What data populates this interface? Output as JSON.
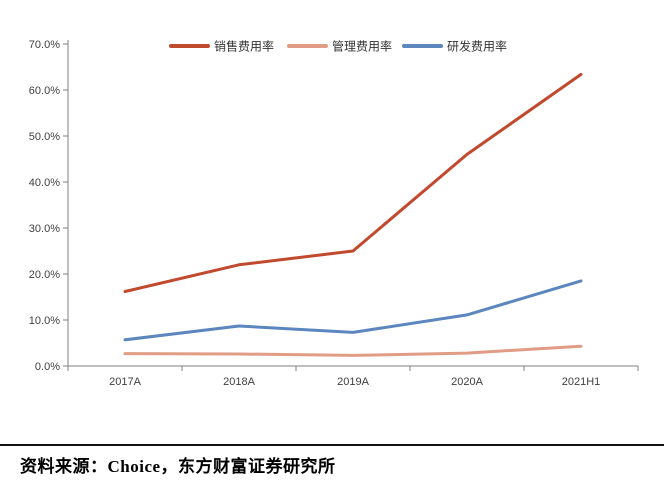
{
  "chart_data": {
    "type": "line",
    "categories": [
      "2017A",
      "2018A",
      "2019A",
      "2020A",
      "2021H1"
    ],
    "series": [
      {
        "name": "销售费用率",
        "color": "#C0492E",
        "values": [
          16.2,
          22.0,
          25.0,
          46.0,
          63.4
        ]
      },
      {
        "name": "管理费用率",
        "color": "#E09C85",
        "values": [
          2.7,
          2.6,
          2.3,
          2.8,
          4.3
        ]
      },
      {
        "name": "研发费用率",
        "color": "#5B87BE",
        "values": [
          5.7,
          8.7,
          7.3,
          11.1,
          18.5
        ]
      }
    ],
    "title": "",
    "xlabel": "",
    "ylabel": "",
    "ylim": [
      0,
      70
    ],
    "ytick_step": 10,
    "ytick_labels": [
      "0.0%",
      "10.0%",
      "20.0%",
      "30.0%",
      "40.0%",
      "50.0%",
      "60.0%",
      "70.0%"
    ],
    "grid": false,
    "legend_position": "top-center",
    "axis_color": "#808080",
    "tick_label_color": "#3f3f3f"
  },
  "footer": {
    "source_text": "资料来源：Choice，东方财富证券研究所"
  }
}
